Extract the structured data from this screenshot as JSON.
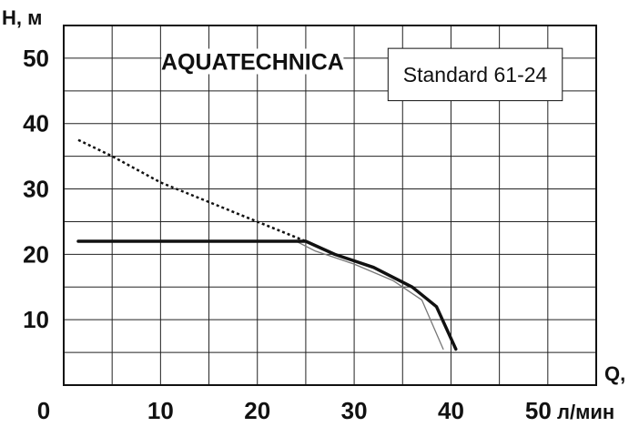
{
  "chart_data": {
    "type": "line",
    "title": "AQUATECHNICA",
    "subtitle": "Standard 61-24",
    "ylabel": "H, м",
    "xlabel_top": "Q,",
    "xlabel_unit": "л/мин",
    "xlim": [
      0,
      55
    ],
    "ylim": [
      0,
      55
    ],
    "x_ticks": [
      {
        "value": 0,
        "label": "0"
      },
      {
        "value": 10,
        "label": "10"
      },
      {
        "value": 20,
        "label": "20"
      },
      {
        "value": 30,
        "label": "30"
      },
      {
        "value": 40,
        "label": "40"
      },
      {
        "value": 50,
        "label": "50"
      }
    ],
    "y_ticks": [
      {
        "value": 10,
        "label": "10"
      },
      {
        "value": 20,
        "label": "20"
      },
      {
        "value": 30,
        "label": "30"
      },
      {
        "value": 40,
        "label": "40"
      },
      {
        "value": 50,
        "label": "50"
      }
    ],
    "grid": true,
    "series": [
      {
        "style": "dotted",
        "color": "#111111",
        "points": [
          [
            1.5,
            37.5
          ],
          [
            5,
            35
          ],
          [
            10,
            31
          ],
          [
            15,
            28
          ],
          [
            20,
            25
          ],
          [
            25,
            22
          ]
        ]
      },
      {
        "style": "thick",
        "color": "#111111",
        "points": [
          [
            1.5,
            22
          ],
          [
            24,
            22
          ],
          [
            25,
            22
          ],
          [
            28,
            20
          ],
          [
            32,
            18
          ],
          [
            36,
            15
          ],
          [
            38.5,
            12
          ],
          [
            40.5,
            5.5
          ]
        ]
      },
      {
        "style": "thin",
        "color": "#777777",
        "points": [
          [
            24,
            22
          ],
          [
            26,
            20.5
          ],
          [
            30,
            18.5
          ],
          [
            34,
            16
          ],
          [
            37,
            13
          ],
          [
            39.2,
            5.5
          ]
        ]
      }
    ]
  }
}
